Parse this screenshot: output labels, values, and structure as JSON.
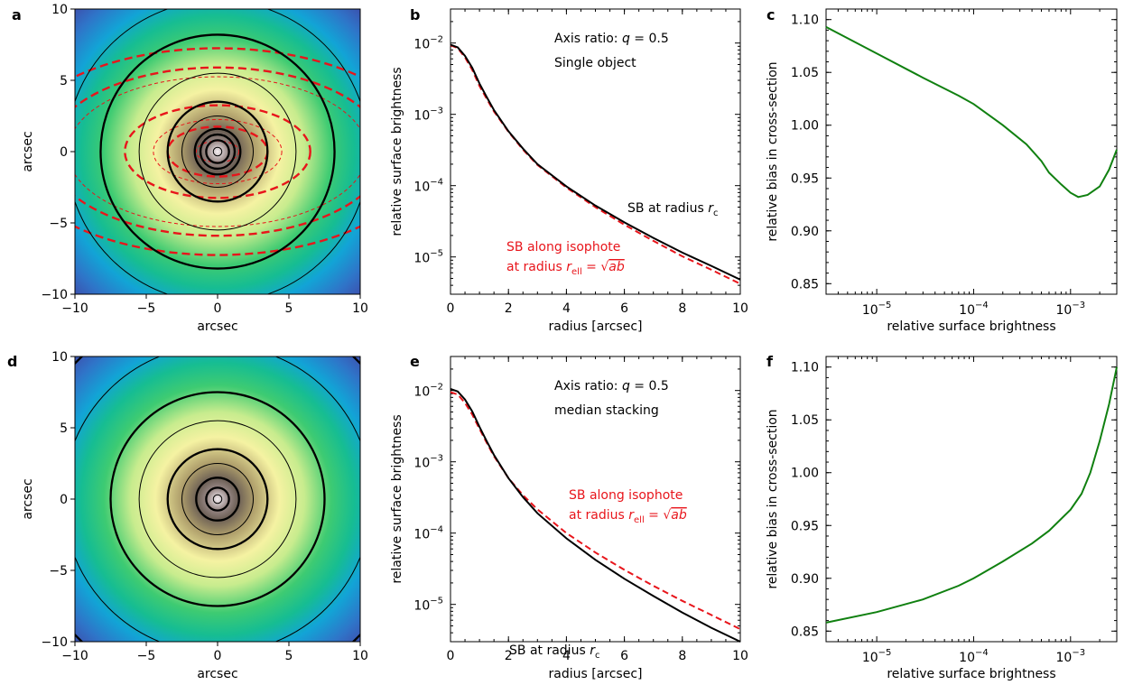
{
  "chart_data": [
    {
      "panel": "a",
      "type": "heatmap",
      "xlabel": "arcsec",
      "ylabel": "arcsec",
      "xlim": [
        -10,
        10
      ],
      "ylim": [
        -10,
        10
      ],
      "xticks": [
        -10,
        -5,
        0,
        5,
        10
      ],
      "yticks": [
        -10,
        -5,
        0,
        5,
        10
      ],
      "axis_ratio": 0.5,
      "circle_radii_thin": [
        0.3,
        2.5,
        5.5,
        10.6
      ],
      "circle_radii_thick": [
        0.8,
        1.2,
        1.6,
        3.5,
        8.2
      ],
      "ellipse_thin_a": [
        1.5,
        4.5,
        10.5
      ],
      "ellipse_thick_a": [
        3.5,
        6.5,
        11.8,
        14.5
      ],
      "colors": {
        "contour": "#000000",
        "isophote": "#e8151b"
      }
    },
    {
      "panel": "b",
      "type": "line",
      "xlabel": "radius [arcsec]",
      "ylabel": "relative surface brightness",
      "xlim": [
        0,
        10
      ],
      "ylim": [
        3e-06,
        0.03
      ],
      "yscale": "log",
      "xticks": [
        0,
        2,
        4,
        6,
        8,
        10
      ],
      "yticks": [
        1e-05,
        0.0001,
        0.001,
        0.01
      ],
      "text": [
        "Axis ratio: q = 0.5",
        "Single object"
      ],
      "series": [
        {
          "name": "SB at radius rc",
          "style": "solid",
          "color": "#000000",
          "x": [
            0,
            0.25,
            0.5,
            0.75,
            1,
            1.25,
            1.5,
            2,
            2.5,
            3,
            4,
            5,
            6,
            7,
            8,
            9,
            10
          ],
          "y": [
            0.0095,
            0.0087,
            0.0066,
            0.0045,
            0.0027,
            0.00175,
            0.00115,
            0.00058,
            0.00033,
            0.0002,
            9.75e-05,
            5.25e-05,
            3.05e-05,
            1.85e-05,
            1.15e-05,
            7.5e-06,
            4.8e-06
          ]
        },
        {
          "name": "SB along isophote at radius rell = √ab",
          "style": "dashed",
          "color": "#e8151b",
          "x": [
            0,
            0.25,
            0.5,
            0.75,
            1,
            1.25,
            1.5,
            2,
            2.5,
            3,
            4,
            5,
            6,
            7,
            8,
            9,
            10
          ],
          "y": [
            0.0093,
            0.0085,
            0.0063,
            0.0042,
            0.0025,
            0.00165,
            0.0011,
            0.00057,
            0.00032,
            0.000195,
            9.4e-05,
            5e-05,
            2.83e-05,
            1.68e-05,
            1.02e-05,
            6.6e-06,
            4.2e-06
          ]
        }
      ],
      "annotations": [
        {
          "text": "SB at radius rc",
          "color": "#000000"
        },
        {
          "text": "SB along isophote",
          "color": "#e8151b"
        },
        {
          "text": "at radius rell = √ab",
          "color": "#e8151b"
        }
      ]
    },
    {
      "panel": "c",
      "type": "line",
      "xlabel": "relative surface brightness",
      "ylabel": "relative bias in cross-section",
      "xlim": [
        3e-06,
        0.003
      ],
      "ylim": [
        0.84,
        1.11
      ],
      "xscale": "log",
      "xticks": [
        1e-05,
        0.0001,
        0.001
      ],
      "yticks": [
        0.85,
        0.9,
        0.95,
        1.0,
        1.05,
        1.1
      ],
      "series": [
        {
          "color": "#108010",
          "x": [
            3e-06,
            1e-05,
            3e-05,
            7e-05,
            0.0001,
            0.0002,
            0.00035,
            0.0005,
            0.0006,
            0.0008,
            0.001,
            0.0012,
            0.0015,
            0.002,
            0.0025,
            0.003
          ],
          "y": [
            1.093,
            1.068,
            1.045,
            1.028,
            1.02,
            1.0,
            0.982,
            0.966,
            0.955,
            0.944,
            0.936,
            0.932,
            0.934,
            0.942,
            0.958,
            0.977
          ]
        }
      ]
    },
    {
      "panel": "d",
      "type": "heatmap",
      "xlabel": "arcsec",
      "ylabel": "arcsec",
      "xlim": [
        -10,
        10
      ],
      "ylim": [
        -10,
        10
      ],
      "xticks": [
        -10,
        -5,
        0,
        5,
        10
      ],
      "yticks": [
        -10,
        -5,
        0,
        5,
        10
      ],
      "circle_radii_thin": [
        0.3,
        2.5,
        5.5,
        10.8
      ],
      "circle_radii_thick": [
        0.8,
        1.5,
        3.5,
        7.5,
        13.8
      ],
      "colors": {
        "contour": "#000000"
      }
    },
    {
      "panel": "e",
      "type": "line",
      "xlabel": "radius [arcsec]",
      "ylabel": "relative surface brightness",
      "xlim": [
        0,
        10
      ],
      "ylim": [
        3e-06,
        0.03
      ],
      "yscale": "log",
      "xticks": [
        0,
        2,
        4,
        6,
        8,
        10
      ],
      "yticks": [
        1e-05,
        0.0001,
        0.001,
        0.01
      ],
      "text": [
        "Axis ratio: q = 0.5",
        "median stacking"
      ],
      "series": [
        {
          "name": "SB at radius rc",
          "style": "solid",
          "color": "#000000",
          "x": [
            0,
            0.25,
            0.5,
            0.75,
            1,
            1.25,
            1.5,
            2,
            2.5,
            3,
            4,
            5,
            6,
            7,
            8,
            9,
            10
          ],
          "y": [
            0.0105,
            0.0097,
            0.0075,
            0.0051,
            0.0031,
            0.00195,
            0.00125,
            0.00059,
            0.00032,
            0.00019,
            8.45e-05,
            4.22e-05,
            2.29e-05,
            1.31e-05,
            7.7e-06,
            4.7e-06,
            3e-06
          ]
        },
        {
          "name": "SB along isophote at radius rell = √ab",
          "style": "dashed",
          "color": "#e8151b",
          "x": [
            0,
            0.25,
            0.5,
            0.75,
            1,
            1.25,
            1.5,
            2,
            2.5,
            3,
            4,
            5,
            6,
            7,
            8,
            9,
            10
          ],
          "y": [
            0.0095,
            0.0088,
            0.0067,
            0.0046,
            0.0029,
            0.00185,
            0.0012,
            0.00059,
            0.00034,
            0.000215,
            0.0001,
            5.35e-05,
            3.05e-05,
            1.82e-05,
            1.12e-05,
            7.1e-06,
            4.5e-06
          ]
        }
      ],
      "annotations": [
        {
          "text": "SB at radius rc",
          "color": "#000000"
        },
        {
          "text": "SB along isophote",
          "color": "#e8151b"
        },
        {
          "text": "at radius rell = √ab",
          "color": "#e8151b"
        }
      ]
    },
    {
      "panel": "f",
      "type": "line",
      "xlabel": "relative surface brightness",
      "ylabel": "relative bias in cross-section",
      "xlim": [
        3e-06,
        0.003
      ],
      "ylim": [
        0.84,
        1.11
      ],
      "xscale": "log",
      "xticks": [
        1e-05,
        0.0001,
        0.001
      ],
      "yticks": [
        0.85,
        0.9,
        0.95,
        1.0,
        1.05,
        1.1
      ],
      "series": [
        {
          "color": "#108010",
          "x": [
            3e-06,
            1e-05,
            3e-05,
            7e-05,
            0.0001,
            0.0002,
            0.0004,
            0.0006,
            0.001,
            0.0013,
            0.0016,
            0.002,
            0.0025,
            0.003
          ],
          "y": [
            0.858,
            0.868,
            0.88,
            0.893,
            0.9,
            0.916,
            0.933,
            0.945,
            0.965,
            0.98,
            1.0,
            1.03,
            1.065,
            1.1
          ]
        }
      ]
    }
  ]
}
